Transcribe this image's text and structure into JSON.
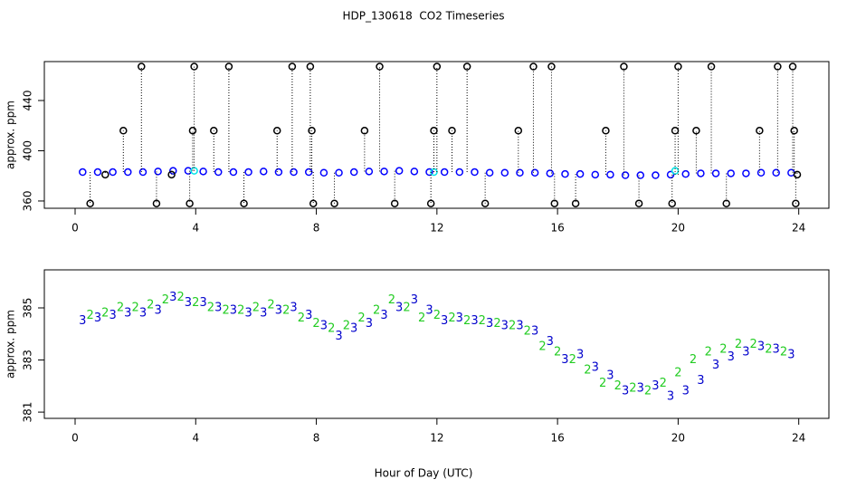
{
  "title": "HDP_130618  CO2 Timeseries",
  "xlabel": "Hour of Day (UTC)",
  "chart_data": [
    {
      "type": "scatter",
      "ylabel": "approx. ppm",
      "xlim": [
        -1.02,
        25.0
      ],
      "ylim": [
        354.2,
        471
      ],
      "xticks": [
        0,
        4,
        8,
        12,
        16,
        20,
        24
      ],
      "yticks": [
        360,
        400,
        440
      ],
      "series": [
        {
          "color": "#0000ff",
          "x": [
            0.25,
            0.75,
            1.25,
            1.75,
            2.25,
            2.75,
            3.25,
            3.75,
            4.25,
            4.75,
            5.25,
            5.75,
            6.25,
            6.75,
            7.25,
            7.75,
            8.25,
            8.75,
            9.25,
            9.75,
            10.25,
            10.75,
            11.25,
            11.75,
            12.25,
            12.75,
            13.25,
            13.75,
            14.25,
            14.75,
            15.25,
            15.75,
            16.25,
            16.75,
            17.25,
            17.75,
            18.25,
            18.75,
            19.25,
            19.75,
            20.25,
            20.75,
            21.25,
            21.75,
            22.25,
            22.75,
            23.25,
            23.75
          ],
          "values": [
            383,
            383,
            383,
            383,
            383,
            383.5,
            384,
            384,
            383.5,
            383,
            383,
            383,
            383.5,
            383,
            383,
            383,
            382.5,
            382.5,
            383,
            383.5,
            383.5,
            384,
            383.5,
            383,
            383,
            383,
            383,
            382.5,
            382.5,
            382.5,
            382.5,
            382,
            381.5,
            381.5,
            381,
            381,
            380.5,
            380.5,
            380.5,
            381,
            381.5,
            382,
            382,
            382,
            382,
            382.5,
            382.5,
            382.5
          ]
        },
        {
          "color": "#00e5e5",
          "x": [
            3.95,
            11.9,
            19.9
          ],
          "values": [
            384,
            383,
            384
          ]
        },
        {
          "color": "#000000",
          "stems": true,
          "x": [
            0.5,
            1,
            1.6,
            2.2,
            2.7,
            3.2,
            3.8,
            3.9,
            3.95,
            4.6,
            5.1,
            5.6,
            6.7,
            7.2,
            7.8,
            7.85,
            7.9,
            8.6,
            9.6,
            10.1,
            10.6,
            11.8,
            11.9,
            12.0,
            12.5,
            13.0,
            13.6,
            14.7,
            15.2,
            15.8,
            15.9,
            16.6,
            17.6,
            18.2,
            18.7,
            19.8,
            19.9,
            20.0,
            20.6,
            21.1,
            21.6,
            22.7,
            23.3,
            23.8,
            23.85,
            23.9,
            23.95
          ],
          "values": [
            358,
            381,
            416,
            467,
            358,
            381,
            358,
            416,
            467,
            416,
            467,
            358,
            416,
            467,
            467,
            416,
            358,
            358,
            416,
            467,
            358,
            358,
            416,
            467,
            416,
            467,
            358,
            416,
            467,
            467,
            358,
            358,
            416,
            467,
            358,
            358,
            416,
            467,
            416,
            467,
            358,
            416,
            467,
            467,
            416,
            358,
            381
          ]
        }
      ]
    },
    {
      "type": "scatter",
      "ylabel": "approx. ppm",
      "xlim": [
        -1.02,
        25.0
      ],
      "ylim": [
        380.76,
        386.46
      ],
      "xticks": [
        0,
        4,
        8,
        12,
        16,
        20,
        24
      ],
      "yticks": [
        381,
        383,
        385
      ],
      "series": [
        {
          "marker": "2",
          "color": "#22cc22",
          "x": [
            0.5,
            1,
            1.5,
            2,
            2.5,
            3,
            3.5,
            4,
            4.5,
            5,
            5.5,
            6,
            6.5,
            7,
            7.5,
            8,
            8.5,
            9,
            9.5,
            10,
            10.5,
            11,
            11.5,
            12,
            12.5,
            13,
            13.5,
            14,
            14.5,
            15,
            15.5,
            16,
            16.5,
            17,
            17.5,
            18,
            18.5,
            19,
            19.5,
            20,
            20.5,
            21,
            21.5,
            22,
            22.5,
            23,
            23.5
          ],
          "values": [
            384.7,
            384.8,
            385.0,
            385.0,
            385.1,
            385.3,
            385.4,
            385.2,
            385.0,
            384.9,
            384.9,
            385.0,
            385.1,
            384.9,
            384.6,
            384.4,
            384.2,
            384.3,
            384.6,
            384.9,
            385.3,
            385.0,
            384.6,
            384.7,
            384.6,
            384.5,
            384.5,
            384.4,
            384.3,
            384.1,
            383.5,
            383.3,
            383.0,
            382.6,
            382.1,
            382.0,
            381.9,
            381.8,
            382.1,
            382.5,
            383.0,
            383.3,
            383.4,
            383.6,
            383.6,
            383.4,
            383.3
          ]
        },
        {
          "marker": "3",
          "color": "#0000cc",
          "x": [
            0.25,
            0.75,
            1.25,
            1.75,
            2.25,
            2.75,
            3.25,
            3.75,
            4.25,
            4.75,
            5.25,
            5.75,
            6.25,
            6.75,
            7.25,
            7.75,
            8.25,
            8.75,
            9.25,
            9.75,
            10.25,
            10.75,
            11.25,
            11.75,
            12.25,
            12.75,
            13.25,
            13.75,
            14.25,
            14.75,
            15.25,
            15.75,
            16.25,
            16.75,
            17.25,
            17.75,
            18.25,
            18.75,
            19.25,
            19.75,
            20.25,
            20.75,
            21.25,
            21.75,
            22.25,
            22.75,
            23.25,
            23.75
          ],
          "values": [
            384.5,
            384.6,
            384.7,
            384.8,
            384.8,
            384.9,
            385.4,
            385.2,
            385.2,
            385.0,
            384.9,
            384.8,
            384.8,
            384.9,
            385.0,
            384.7,
            384.3,
            383.9,
            384.2,
            384.4,
            384.7,
            385.0,
            385.3,
            384.9,
            384.5,
            384.6,
            384.5,
            384.4,
            384.3,
            384.3,
            384.1,
            383.7,
            383.0,
            383.2,
            382.7,
            382.4,
            381.8,
            381.9,
            382.0,
            381.6,
            381.8,
            382.2,
            382.8,
            383.1,
            383.3,
            383.5,
            383.4,
            383.2
          ]
        }
      ]
    }
  ]
}
